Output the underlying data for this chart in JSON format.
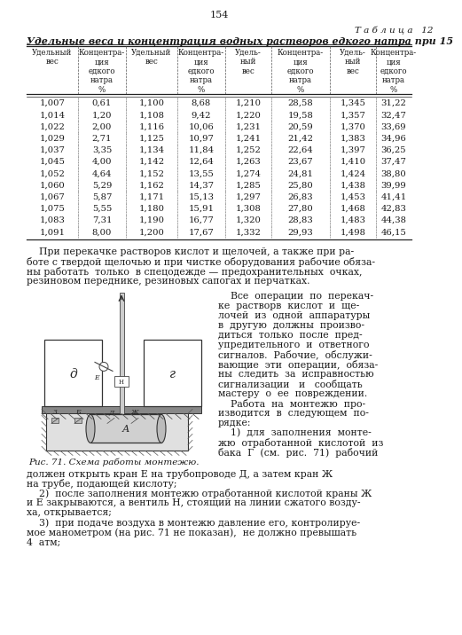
{
  "tab_label": "Т а б л и ц а   12",
  "tab_title": "Удельные веса и концентрация водных растворов едкого натра при 15",
  "col_headers": [
    "Удельный\nвес",
    "Концентра-\nция\nедкого\nнатра\n%",
    "Удельный\nвес",
    "Концентра-\nция\nедкого\nнатра\n%",
    "Удель-\nный\nвес",
    "Концентра-\nция\nедкого\nнатра\n%",
    "Удель-\nный\nвес",
    "Концентра-\nция\nедкого\nнатра\n%"
  ],
  "table_data": [
    [
      "1,007",
      "0,61",
      "1,100",
      "8,68",
      "1,210",
      "28,58",
      "1,345",
      "31,22"
    ],
    [
      "1,014",
      "1,20",
      "1,108",
      "9,42",
      "1,220",
      "19,58",
      "1,357",
      "32,47"
    ],
    [
      "1,022",
      "2,00",
      "1,116",
      "10,06",
      "1,231",
      "20,59",
      "1,370",
      "33,69"
    ],
    [
      "1,029",
      "2,71",
      "1,125",
      "10,97",
      "1,241",
      "21,42",
      "1,383",
      "34,96"
    ],
    [
      "1,037",
      "3,35",
      "1,134",
      "11,84",
      "1,252",
      "22,64",
      "1,397",
      "36,25"
    ],
    [
      "1,045",
      "4,00",
      "1,142",
      "12,64",
      "1,263",
      "23,67",
      "1,410",
      "37,47"
    ],
    [
      "1,052",
      "4,64",
      "1,152",
      "13,55",
      "1,274",
      "24,81",
      "1,424",
      "38,80"
    ],
    [
      "1,060",
      "5,29",
      "1,162",
      "14,37",
      "1,285",
      "25,80",
      "1,438",
      "39,99"
    ],
    [
      "1,067",
      "5,87",
      "1,171",
      "15,13",
      "1,297",
      "26,83",
      "1,453",
      "41,41"
    ],
    [
      "1,075",
      "5,55",
      "1,180",
      "15,91",
      "1,308",
      "27,80",
      "1,468",
      "42,83"
    ],
    [
      "1,083",
      "7,31",
      "1,190",
      "16,77",
      "1,320",
      "28,83",
      "1,483",
      "44,38"
    ],
    [
      "1,091",
      "8,00",
      "1,200",
      "17,67",
      "1,332",
      "29,93",
      "1,498",
      "46,15"
    ]
  ],
  "para1_lines": [
    "    При перекачке растворов кислот и щелочей, а также при ра-",
    "боте с твердой щелочью и при чистке оборудования рабочие обяза-",
    "ны работать  только  в спецодежде — предохранительных  очках,",
    "резиновом переднике, резиновых сапогах и перчатках."
  ],
  "right_col_lines": [
    "    Все  операции  по  перекач-",
    "ке  растворв  кислот  и  ще-",
    "лочей  из  одной  аппаратуры",
    "в  другую  должны  произво-",
    "диться  только  после  пред-",
    "упредительного  и  ответного",
    "сигналов.  Рабочие,  обслужи-",
    "вающие  эти  операции,  обяза-",
    "ны  следить  за  исправностью",
    "сигнализации   и   сообщать",
    "мастеру  о  ее  повреждении.",
    "    Работа  на  монтежю  про-",
    "изводится  в  следующем  по-",
    "рядке:",
    "    1)  для  заполнения  монте-",
    "жю  отработанной  кислотой  из",
    "бака  Г  (см.  рис.  71)  рабочий"
  ],
  "fig_caption": "Рис. 71. Схема работы монтежю.",
  "bottom_lines": [
    "должен открыть кран Е на трубопроводе Д, а затем кран Ж",
    "на трубе, подающей кислоту;",
    "    2)  после заполнения монтежю отработанной кислотой краны Ж",
    "и Е закрываются, а вентиль Н, стоящий на линии сжатого возду-",
    "ха, открывается;",
    "    3)  при подаче воздуха в монтежю давление его, контролируе-",
    "мое манометром (на рис. 71 не показан),  не должно превышать",
    "4  атм;"
  ],
  "page_num": "154",
  "bg_color": "#ffffff",
  "text_color": "#1a1a1a"
}
